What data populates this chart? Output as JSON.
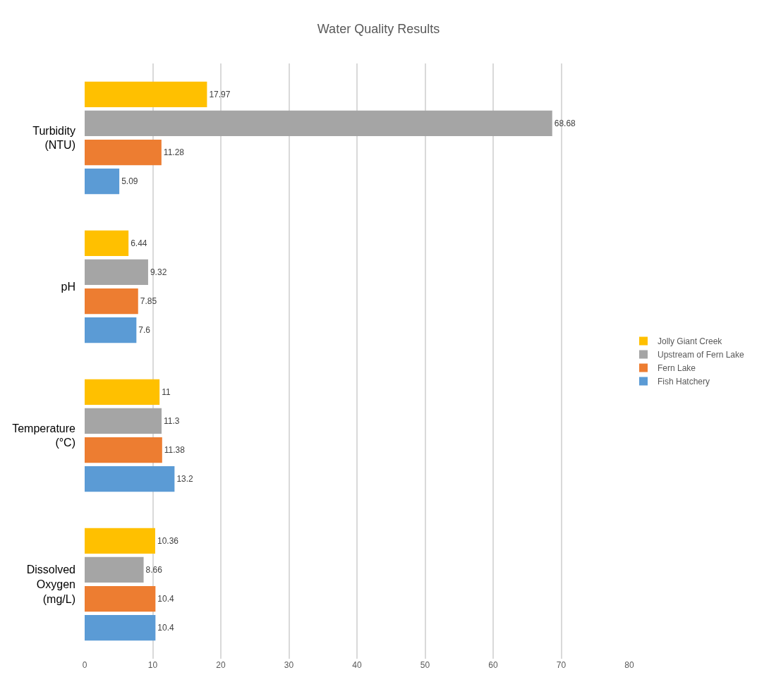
{
  "chart_data": {
    "type": "bar",
    "orientation": "horizontal",
    "title": "Water Quality Results",
    "categories": [
      "Turbidity (NTU)",
      "pH",
      "Temperature (°C)",
      "Dissolved Oxygen (mg/L)"
    ],
    "series": [
      {
        "name": "Jolly Giant Creek",
        "color": "#ffc000",
        "values": [
          17.97,
          6.44,
          11,
          10.36
        ]
      },
      {
        "name": "Upstream of Fern Lake",
        "color": "#a5a5a5",
        "values": [
          68.68,
          9.32,
          11.3,
          8.66
        ]
      },
      {
        "name": "Fern Lake",
        "color": "#ed7d31",
        "values": [
          11.28,
          7.85,
          11.38,
          10.4
        ]
      },
      {
        "name": "Fish Hatchery",
        "color": "#5b9bd5",
        "values": [
          5.09,
          7.6,
          13.2,
          10.4
        ]
      }
    ],
    "xlim": [
      0,
      80
    ],
    "xticks": [
      0,
      10,
      20,
      30,
      40,
      50,
      60,
      70,
      80
    ],
    "grid": "x",
    "legend": "right",
    "data_labels": true
  }
}
